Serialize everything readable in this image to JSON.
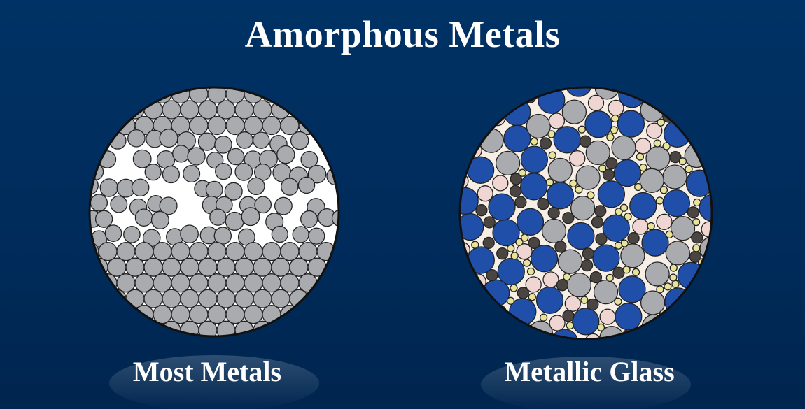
{
  "title": "Amorphous Metals",
  "panels": [
    {
      "label": "Most Metals"
    },
    {
      "label": "Metallic Glass"
    }
  ],
  "colors": {
    "background": "#003265",
    "atom_gray": "#a9abae",
    "atom_blue": "#1f4fa8",
    "atom_pink": "#efd6d2",
    "atom_dark": "#4a4540",
    "atom_yellow": "#e8e39a",
    "outline": "#111111"
  }
}
